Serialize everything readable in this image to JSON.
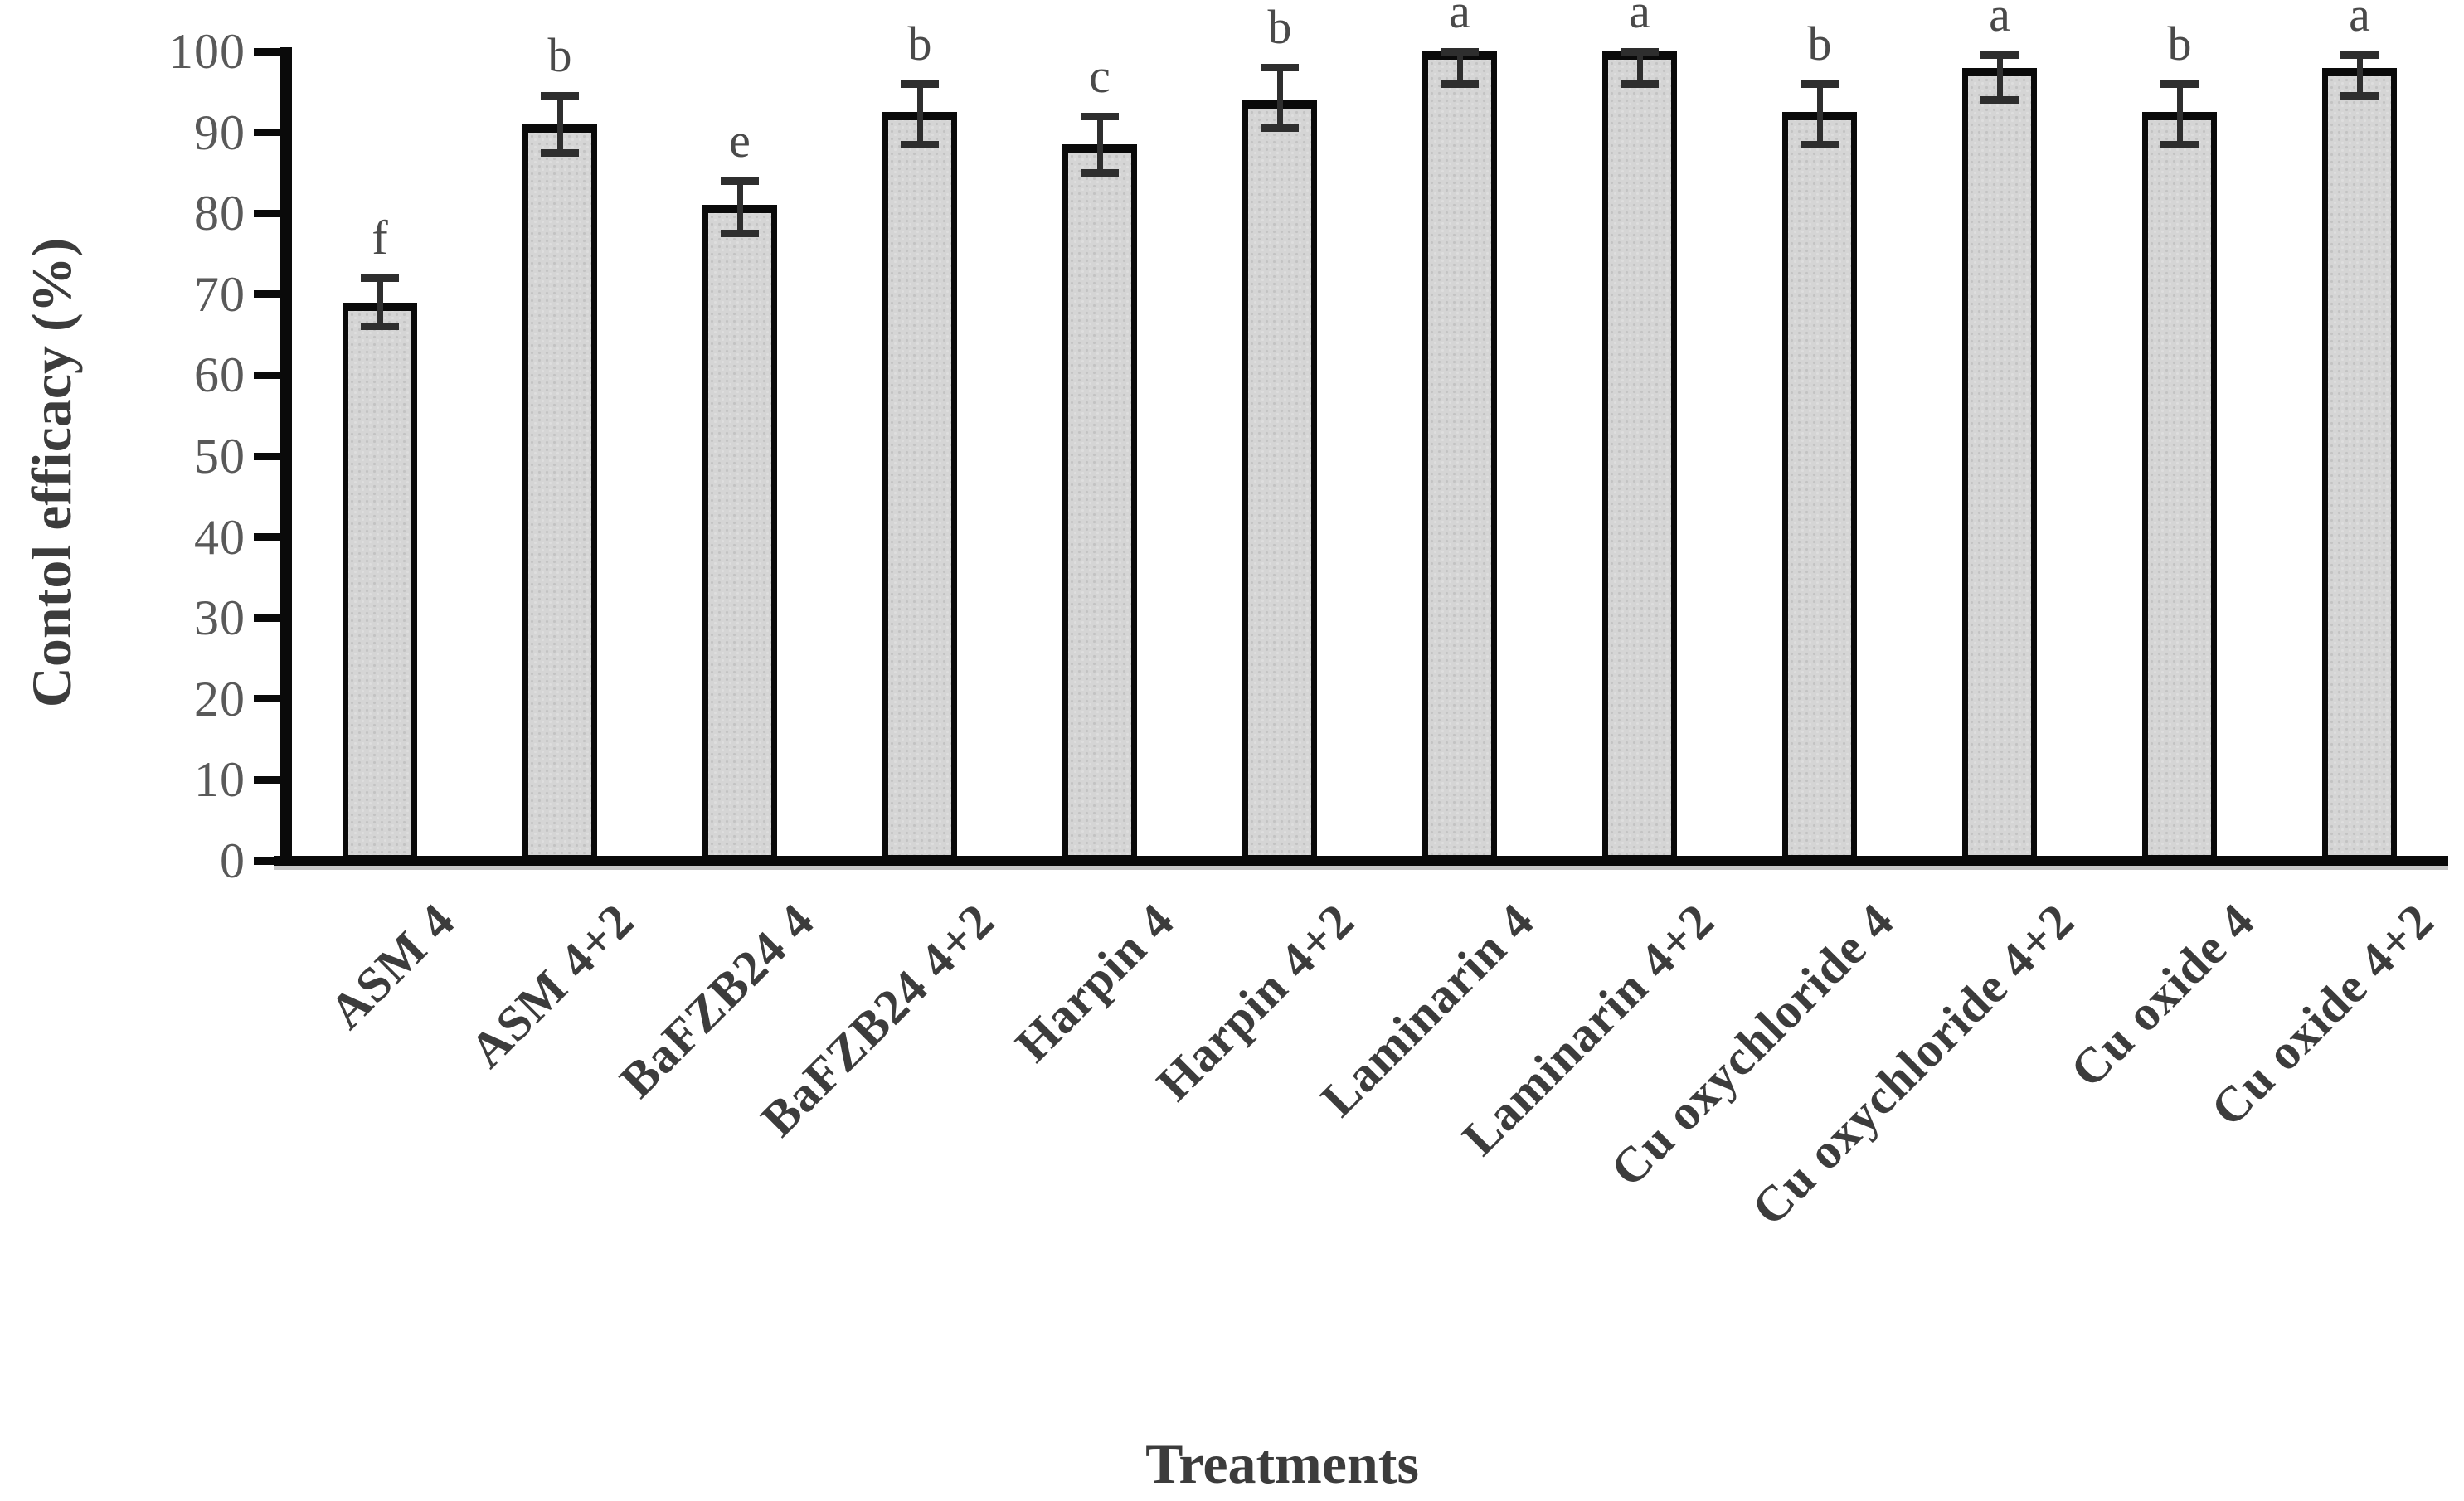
{
  "figure": {
    "kind": "scientific-bar-figure"
  },
  "chart_data": {
    "type": "bar",
    "title": "",
    "xlabel": "Treatments",
    "ylabel": "Contol efficacy (%)",
    "ylim": [
      0,
      100
    ],
    "yticks": [
      0,
      10,
      20,
      30,
      40,
      50,
      60,
      70,
      80,
      90,
      100
    ],
    "grid": false,
    "legend": null,
    "categories": [
      "ASM 4",
      "ASM 4+2",
      "BaFZB24 4",
      "BaFZB24 4+2",
      "Harpin 4",
      "Harpin 4+2",
      "Laminarin 4",
      "Laminarin 4+2",
      "Cu oxychloride 4",
      "Cu oxychloride 4+2",
      "Cu oxide 4",
      "Cu oxide 4+2"
    ],
    "values": [
      69,
      91,
      81,
      92.5,
      88.5,
      94,
      100,
      100,
      92.5,
      98,
      92.5,
      98
    ],
    "error_up": [
      3,
      3.5,
      3,
      3.5,
      3.5,
      4,
      0,
      0,
      3.5,
      1.5,
      3.5,
      1.5
    ],
    "error_down": [
      3,
      3.5,
      3.5,
      4,
      3.5,
      3.5,
      4,
      4,
      4,
      4,
      4,
      3.5
    ],
    "sig_letters": [
      "f",
      "b",
      "e",
      "b",
      "c",
      "b",
      "a",
      "a",
      "b",
      "a",
      "b",
      "a"
    ],
    "colors": {
      "bar_fill": "#d5d5d5",
      "bar_border": "#0a0a0a",
      "error_bar": "#2e2e2e",
      "tick_label": "#595959",
      "axis_text": "#3c3c3c",
      "axis_line": "#0a0a0a"
    }
  }
}
